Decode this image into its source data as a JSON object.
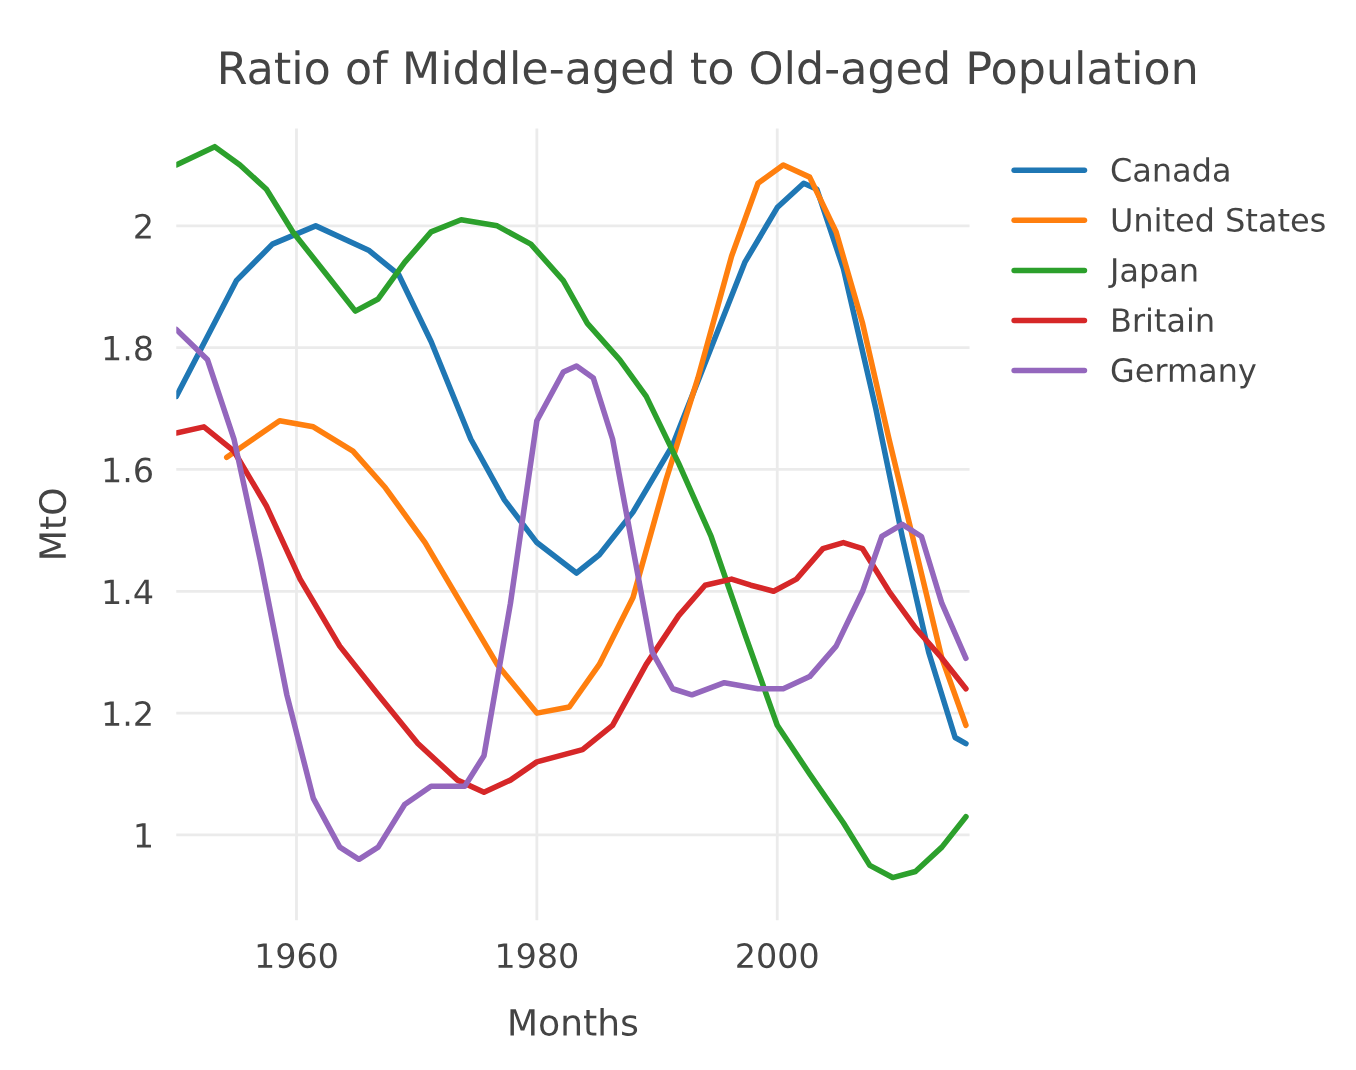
{
  "chart_data": {
    "type": "line",
    "title": "Ratio of Middle-aged to Old-aged Population",
    "xlabel": "Months",
    "ylabel": "MtO",
    "xlim": [
      1950,
      2016
    ],
    "ylim": [
      0.86,
      2.16
    ],
    "xticks": [
      1960,
      1980,
      2000
    ],
    "yticks": [
      1,
      1.2,
      1.4,
      1.6,
      1.8,
      2
    ],
    "grid": true,
    "legend": "top right",
    "marker": "none",
    "line_style": "solid",
    "series": [
      {
        "name": "Canada",
        "color": "#1f77b4",
        "x": [
          1950,
          1955,
          1958,
          1961.6,
          1966,
          1968.5,
          1971.2,
          1974.5,
          1977.3,
          1980,
          1983.3,
          1985.2,
          1988,
          1991.3,
          1994.5,
          1997.3,
          2000,
          2002.2,
          2003.3,
          2005.5,
          2008.2,
          2010.4,
          2012.6,
          2014.8,
          2015.7
        ],
        "values": [
          1.72,
          1.91,
          1.97,
          2.0,
          1.96,
          1.92,
          1.81,
          1.65,
          1.55,
          1.48,
          1.43,
          1.46,
          1.53,
          1.64,
          1.8,
          1.94,
          2.03,
          2.07,
          2.06,
          1.93,
          1.7,
          1.49,
          1.3,
          1.16,
          1.15
        ]
      },
      {
        "name": "United States",
        "color": "#ff7f0e",
        "x": [
          1954.2,
          1956.4,
          1958.6,
          1961.4,
          1964.7,
          1967.4,
          1970.7,
          1974,
          1976.7,
          1980,
          1982.7,
          1985.2,
          1988,
          1990.7,
          1993.4,
          1996.2,
          1998.4,
          2000.5,
          2002.7,
          2004.9,
          2007.1,
          2009.3,
          2011.5,
          2013.7,
          2015.7
        ],
        "values": [
          1.62,
          1.65,
          1.68,
          1.67,
          1.63,
          1.57,
          1.48,
          1.37,
          1.28,
          1.2,
          1.21,
          1.28,
          1.39,
          1.58,
          1.75,
          1.95,
          2.07,
          2.1,
          2.08,
          1.99,
          1.84,
          1.65,
          1.47,
          1.29,
          1.18
        ]
      },
      {
        "name": "Japan",
        "color": "#2ca02c",
        "x": [
          1950,
          1953.2,
          1955.3,
          1957.5,
          1959.7,
          1962.5,
          1964.9,
          1966.8,
          1969,
          1971.2,
          1973.7,
          1976.7,
          1979.5,
          1982.2,
          1984.2,
          1986.9,
          1989.1,
          1991.8,
          1994.5,
          1997.3,
          2000,
          2002.7,
          2005.5,
          2007.7,
          2009.6,
          2011.5,
          2013.7,
          2015.7
        ],
        "values": [
          2.1,
          2.13,
          2.1,
          2.06,
          1.99,
          1.92,
          1.86,
          1.88,
          1.94,
          1.99,
          2.01,
          2.0,
          1.97,
          1.91,
          1.84,
          1.78,
          1.72,
          1.61,
          1.49,
          1.33,
          1.18,
          1.1,
          1.02,
          0.95,
          0.93,
          0.94,
          0.98,
          1.03
        ]
      },
      {
        "name": "Britain",
        "color": "#d62728",
        "x": [
          1950,
          1952.3,
          1954.8,
          1957.5,
          1960.3,
          1963.6,
          1966.8,
          1970.1,
          1973.4,
          1975.6,
          1977.8,
          1980,
          1983.8,
          1986.3,
          1989.1,
          1991.8,
          1994,
          1996.2,
          1997.8,
          1999.7,
          2001.6,
          2003.8,
          2005.5,
          2007.1,
          2009.3,
          2011.5,
          2013.7,
          2015.7
        ],
        "values": [
          1.66,
          1.67,
          1.63,
          1.54,
          1.42,
          1.31,
          1.23,
          1.15,
          1.09,
          1.07,
          1.09,
          1.12,
          1.14,
          1.18,
          1.28,
          1.36,
          1.41,
          1.42,
          1.41,
          1.4,
          1.42,
          1.47,
          1.48,
          1.47,
          1.4,
          1.34,
          1.29,
          1.24
        ]
      },
      {
        "name": "Germany",
        "color": "#9467bd",
        "x": [
          1950,
          1952.6,
          1954.8,
          1957,
          1959.2,
          1961.4,
          1963.6,
          1965.2,
          1966.8,
          1969,
          1971.2,
          1974,
          1975.6,
          1977.8,
          1980,
          1982.2,
          1983.3,
          1984.7,
          1986.3,
          1988,
          1989.6,
          1991.3,
          1992.9,
          1995.6,
          1998.4,
          2000.5,
          2002.7,
          2004.9,
          2007.1,
          2008.7,
          2010.4,
          2012,
          2013.7,
          2015.7
        ],
        "values": [
          1.83,
          1.78,
          1.65,
          1.45,
          1.23,
          1.06,
          0.98,
          0.96,
          0.98,
          1.05,
          1.08,
          1.08,
          1.13,
          1.38,
          1.68,
          1.76,
          1.77,
          1.75,
          1.65,
          1.47,
          1.3,
          1.24,
          1.23,
          1.25,
          1.24,
          1.24,
          1.26,
          1.31,
          1.4,
          1.49,
          1.51,
          1.49,
          1.38,
          1.29
        ]
      }
    ]
  }
}
